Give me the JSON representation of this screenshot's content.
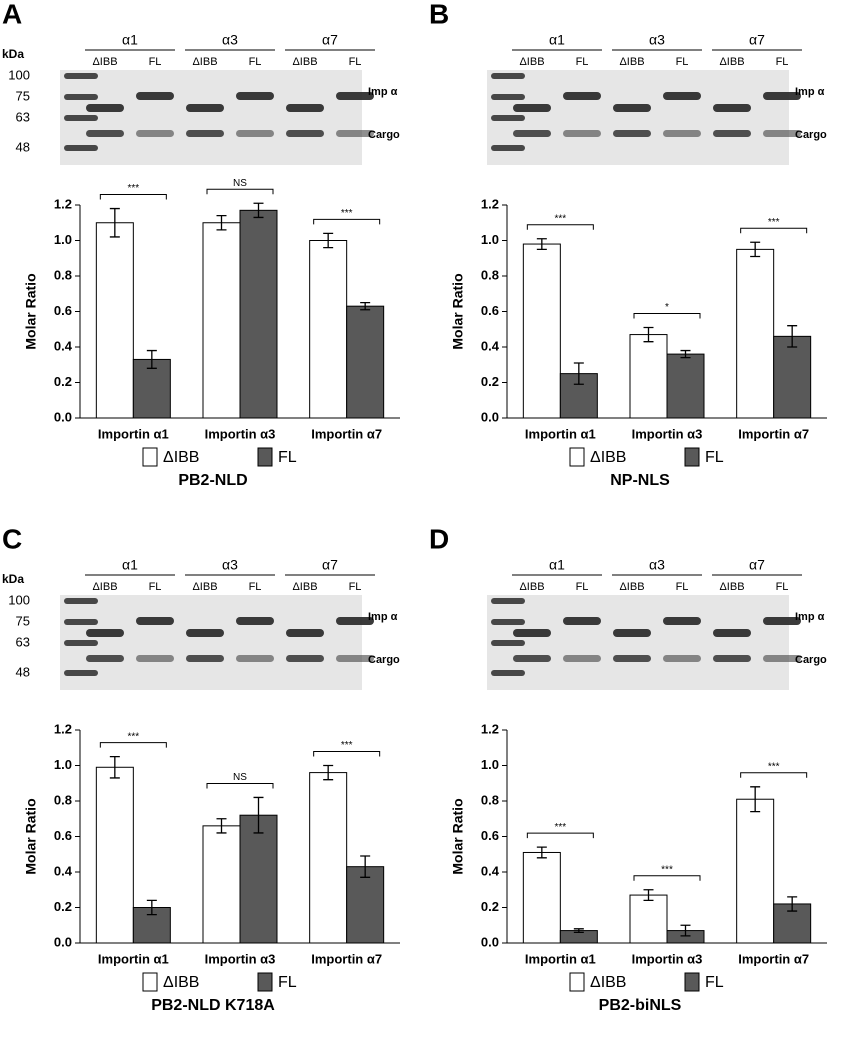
{
  "chart_data": [
    {
      "type": "bar",
      "panel": "A",
      "title": "PB2-NLD",
      "y_label": "Molar Ratio",
      "gel": {
        "unit": "kDa",
        "markers": [
          100,
          75,
          63,
          48
        ],
        "groups": [
          "α1",
          "α3",
          "α7"
        ],
        "lanes": [
          "ΔIBB",
          "FL"
        ],
        "band_labels": [
          "Imp α",
          "Cargo"
        ]
      },
      "categories": [
        "Importin α1",
        "Importin α3",
        "Importin α7"
      ],
      "series": [
        {
          "name": "ΔIBB",
          "color": "#ffffff",
          "values": [
            1.1,
            1.1,
            1.0
          ],
          "errors": [
            0.08,
            0.04,
            0.04
          ]
        },
        {
          "name": "FL",
          "color": "#595959",
          "values": [
            0.33,
            1.17,
            0.63
          ],
          "errors": [
            0.05,
            0.04,
            0.02
          ]
        }
      ],
      "significance": [
        "***",
        "NS",
        "***"
      ],
      "ylim": [
        0,
        1.2
      ],
      "yticks": [
        {
          "value": 0,
          "label": "0.0"
        },
        0.2,
        0.4,
        0.6,
        0.8,
        {
          "value": 1,
          "label": "1.0"
        },
        1.2
      ]
    },
    {
      "type": "bar",
      "panel": "B",
      "title": "NP-NLS",
      "y_label": "Molar Ratio",
      "gel": {
        "groups": [
          "α1",
          "α3",
          "α7"
        ],
        "lanes": [
          "ΔIBB",
          "FL"
        ],
        "band_labels": [
          "Imp α",
          "Cargo"
        ]
      },
      "categories": [
        "Importin α1",
        "Importin α3",
        "Importin α7"
      ],
      "series": [
        {
          "name": "ΔIBB",
          "color": "#ffffff",
          "values": [
            0.98,
            0.47,
            0.95
          ],
          "errors": [
            0.03,
            0.04,
            0.04
          ]
        },
        {
          "name": "FL",
          "color": "#595959",
          "values": [
            0.25,
            0.36,
            0.46
          ],
          "errors": [
            0.06,
            0.02,
            0.06
          ]
        }
      ],
      "significance": [
        "***",
        "*",
        "***"
      ],
      "ylim": [
        0,
        1.2
      ],
      "yticks": [
        {
          "value": 0,
          "label": "0.0"
        },
        0.2,
        0.4,
        0.6,
        0.8,
        {
          "value": 1,
          "label": "1.0"
        },
        1.2
      ]
    },
    {
      "type": "bar",
      "panel": "C",
      "title": "PB2-NLD K718A",
      "y_label": "Molar Ratio",
      "gel": {
        "unit": "kDa",
        "markers": [
          100,
          75,
          63,
          48
        ],
        "groups": [
          "α1",
          "α3",
          "α7"
        ],
        "lanes": [
          "ΔIBB",
          "FL"
        ],
        "band_labels": [
          "Imp α",
          "Cargo"
        ]
      },
      "categories": [
        "Importin α1",
        "Importin α3",
        "Importin α7"
      ],
      "series": [
        {
          "name": "ΔIBB",
          "color": "#ffffff",
          "values": [
            0.99,
            0.66,
            0.96
          ],
          "errors": [
            0.06,
            0.04,
            0.04
          ]
        },
        {
          "name": "FL",
          "color": "#595959",
          "values": [
            0.2,
            0.72,
            0.43
          ],
          "errors": [
            0.04,
            0.1,
            0.06
          ]
        }
      ],
      "significance": [
        "***",
        "NS",
        "***"
      ],
      "ylim": [
        0,
        1.2
      ],
      "yticks": [
        {
          "value": 0,
          "label": "0.0"
        },
        0.2,
        0.4,
        0.6,
        0.8,
        {
          "value": 1,
          "label": "1.0"
        },
        1.2
      ]
    },
    {
      "type": "bar",
      "panel": "D",
      "title": "PB2-biNLS",
      "y_label": "Molar Ratio",
      "gel": {
        "groups": [
          "α1",
          "α3",
          "α7"
        ],
        "lanes": [
          "ΔIBB",
          "FL"
        ],
        "band_labels": [
          "Imp α",
          "Cargo"
        ]
      },
      "categories": [
        "Importin α1",
        "Importin α3",
        "Importin α7"
      ],
      "series": [
        {
          "name": "ΔIBB",
          "color": "#ffffff",
          "values": [
            0.51,
            0.27,
            0.81
          ],
          "errors": [
            0.03,
            0.03,
            0.07
          ]
        },
        {
          "name": "FL",
          "color": "#595959",
          "values": [
            0.07,
            0.07,
            0.22
          ],
          "errors": [
            0.01,
            0.03,
            0.04
          ]
        }
      ],
      "significance": [
        "***",
        "***",
        "***"
      ],
      "ylim": [
        0,
        1.2
      ],
      "yticks": [
        {
          "value": 0,
          "label": "0.0"
        },
        0.2,
        0.4,
        0.6,
        0.8,
        {
          "value": 1,
          "label": "1.0"
        },
        1.2
      ]
    }
  ]
}
